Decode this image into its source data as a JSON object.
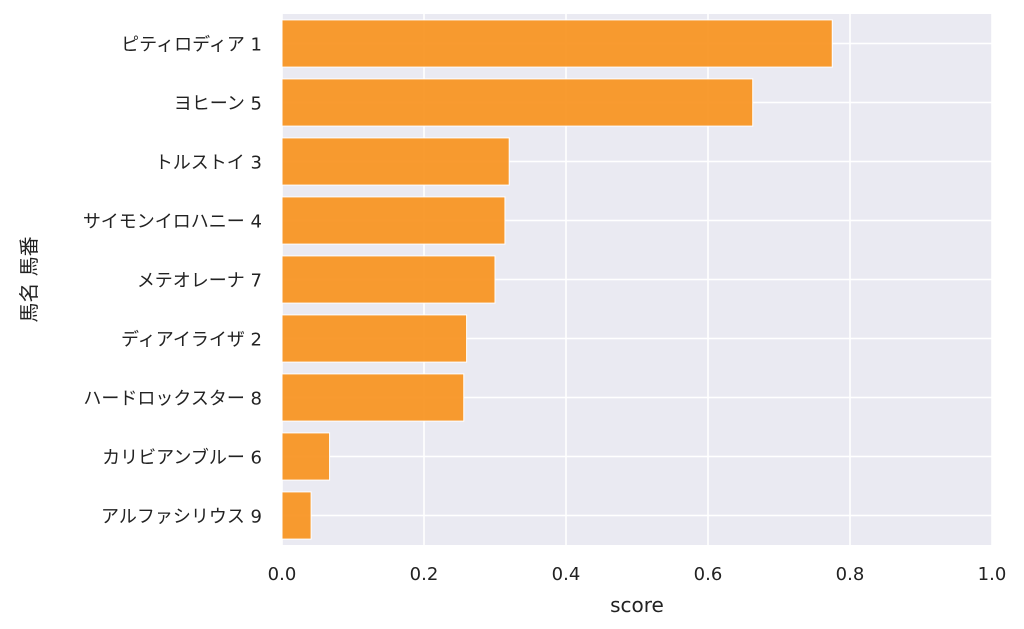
{
  "chart_data": {
    "type": "bar",
    "orientation": "horizontal",
    "categories": [
      "ピティロディア 1",
      "ヨヒーン 5",
      "トルストイ 3",
      "サイモンイロハニー 4",
      "メテオレーナ 7",
      "ディアイライザ 2",
      "ハードロックスター 8",
      "カリビアンブルー 6",
      "アルファシリウス 9"
    ],
    "values": [
      0.775,
      0.663,
      0.32,
      0.314,
      0.3,
      0.26,
      0.256,
      0.067,
      0.041
    ],
    "xlabel": "score",
    "ylabel": "馬名 馬番",
    "xlim": [
      0.0,
      1.0
    ],
    "xticks": [
      "0.0",
      "0.2",
      "0.4",
      "0.6",
      "0.8",
      "1.0"
    ],
    "bar_color": "#f7931e",
    "background_color": "#eaeaf2",
    "grid": true
  }
}
